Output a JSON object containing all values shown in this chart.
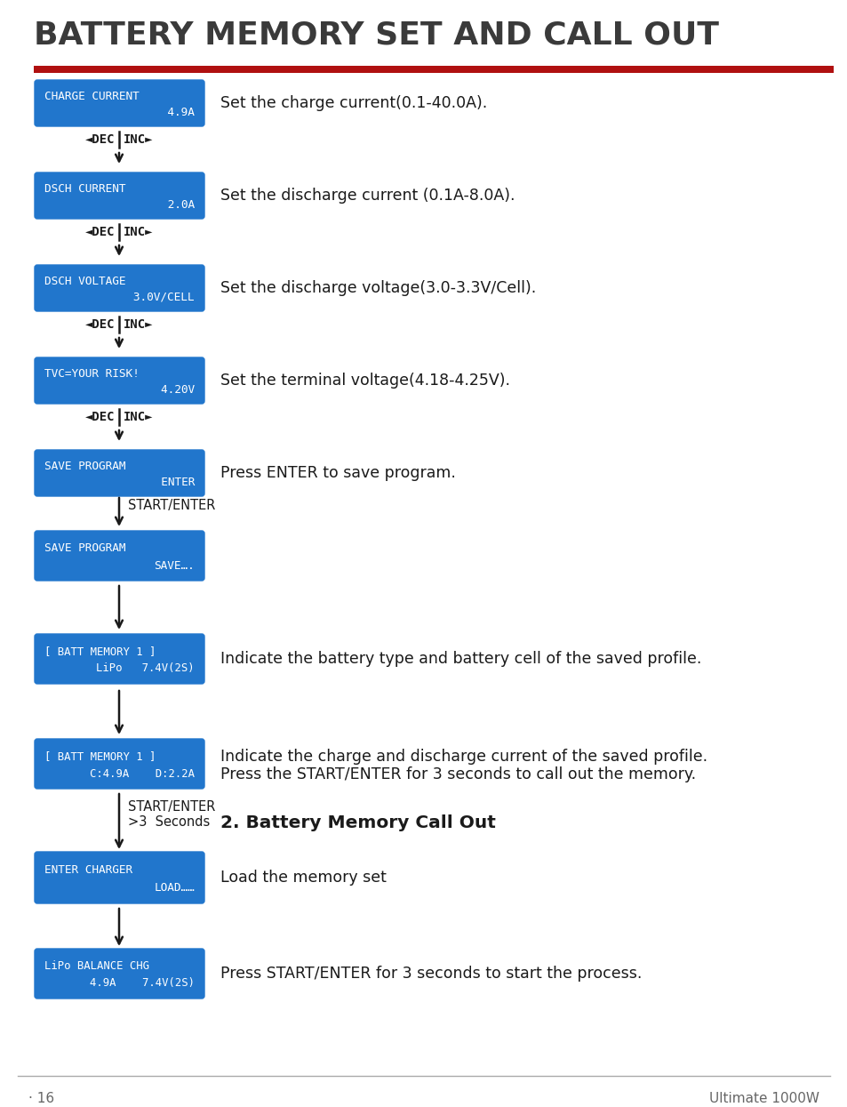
{
  "title": "BATTERY MEMORY SET AND CALL OUT",
  "page_num": "· 16",
  "page_brand": "Ultimate 1000W",
  "bg_color": "#ffffff",
  "title_color": "#3a3a3a",
  "red_line_color": "#b01010",
  "box_bg": "#2176cc",
  "box_text_color": "#ffffff",
  "arrow_color": "#1a1a1a",
  "desc_text_color": "#1a1a1a",
  "footer_color": "#666666"
}
